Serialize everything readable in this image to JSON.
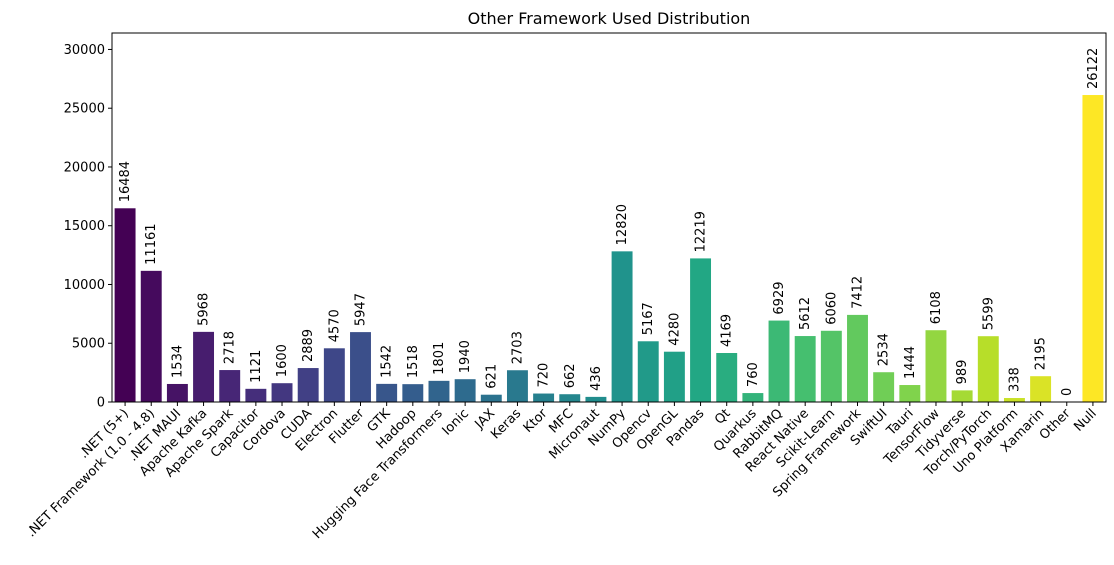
{
  "chart_data": {
    "type": "bar",
    "title": "Other Framework Used Distribution",
    "xlabel": "",
    "ylabel": "",
    "ylim": [
      0,
      31400
    ],
    "yticks": [
      0,
      5000,
      10000,
      15000,
      20000,
      25000,
      30000
    ],
    "grid": false,
    "legend": "none",
    "palette": "viridis",
    "categories": [
      ".NET (5+)",
      ".NET Framework (1.0 - 4.8)",
      ".NET MAUI",
      "Apache Kafka",
      "Apache Spark",
      "Capacitor",
      "Cordova",
      "CUDA",
      "Electron",
      "Flutter",
      "GTK",
      "Hadoop",
      "Hugging Face Transformers",
      "Ionic",
      "JAX",
      "Keras",
      "Ktor",
      "MFC",
      "Micronaut",
      "NumPy",
      "Opencv",
      "OpenGL",
      "Pandas",
      "Qt",
      "Quarkus",
      "RabbitMQ",
      "React Native",
      "Scikit-Learn",
      "Spring Framework",
      "SwiftUI",
      "Tauri",
      "TensorFlow",
      "Tidyverse",
      "Torch/PyTorch",
      "Uno Platform",
      "Xamarin",
      "Other",
      "Null"
    ],
    "values": [
      16484,
      11161,
      1534,
      5968,
      2718,
      1121,
      1600,
      2889,
      4570,
      5947,
      1542,
      1518,
      1801,
      1940,
      621,
      2703,
      720,
      662,
      436,
      12820,
      5167,
      4280,
      12219,
      4169,
      760,
      6929,
      5612,
      6060,
      7412,
      2534,
      1444,
      6108,
      989,
      5599,
      338,
      2195,
      0,
      26122
    ],
    "colors": [
      "#440154",
      "#471365",
      "#482475",
      "#463480",
      "#414487",
      "#3b528b",
      "#355f8d",
      "#2f6c8e",
      "#2a788e",
      "#25848e",
      "#21918c",
      "#1e9c89",
      "#22a884",
      "#2fb47c",
      "#44bf70",
      "#5ec962",
      "#7ad151",
      "#9bd93c",
      "#bddf26",
      "#dfe318",
      "#fde725",
      "#fde725",
      "#fde725",
      "#fde725",
      "#fde725",
      "#fde725",
      "#fde725",
      "#fde725",
      "#fde725",
      "#fde725",
      "#fde725",
      "#fde725",
      "#fde725",
      "#fde725",
      "#fde725",
      "#fde725",
      "#fde725",
      "#fde725"
    ]
  }
}
